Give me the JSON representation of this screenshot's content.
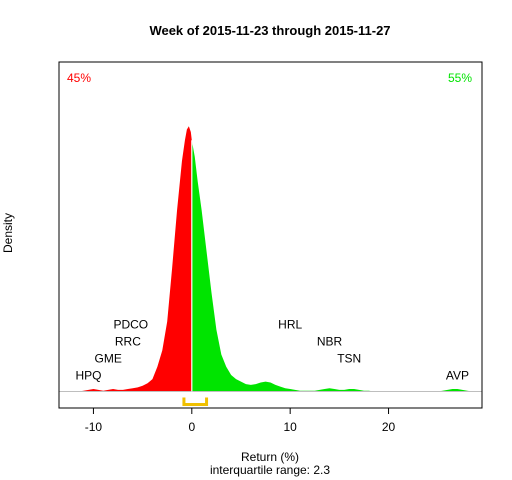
{
  "chart_data": {
    "type": "area",
    "title": "Week of 2015-11-23 through 2015-11-27",
    "xlabel": "Return (%)",
    "ylabel": "Density",
    "subtitle": "interquartile range: 2.3",
    "xlim": [
      -13.5,
      29.5
    ],
    "ylim": [
      -0.02,
      0.4
    ],
    "x_ticks": [
      -10,
      0,
      10,
      20
    ],
    "x_tick_labels": [
      "-10",
      "0",
      "10",
      "20"
    ],
    "grid": false,
    "split_at": 0,
    "negative_share": "45%",
    "positive_share": "55%",
    "colors": {
      "negative": "#ff0000",
      "positive": "#00e400",
      "iqr_bracket": "#f0c000",
      "baseline": "#bebebe",
      "text": "#000000"
    },
    "interquartile_range": {
      "q1": -0.8,
      "q3": 1.5
    },
    "density": {
      "x": [
        -11.5,
        -11,
        -10.5,
        -10,
        -9.5,
        -9,
        -8.5,
        -8,
        -7.5,
        -7,
        -6.5,
        -6,
        -5.5,
        -5,
        -4.5,
        -4,
        -3.5,
        -3,
        -2.5,
        -2,
        -1.5,
        -1,
        -0.7,
        -0.5,
        -0.3,
        -0.1,
        0,
        0.3,
        0.6,
        1,
        1.5,
        2,
        2.5,
        3,
        3.5,
        4,
        4.5,
        5,
        5.5,
        6,
        6.5,
        7,
        7.5,
        8,
        8.5,
        9,
        9.5,
        10,
        10.5,
        11,
        11.5,
        12,
        12.5,
        13,
        13.5,
        14,
        14.5,
        15,
        15.5,
        16,
        16.5,
        17,
        17.5,
        18,
        18.5,
        19,
        20,
        21,
        22,
        23,
        24,
        25,
        25.5,
        26,
        26.5,
        27,
        27.5,
        28,
        28.5
      ],
      "y": [
        0,
        0.001,
        0.002,
        0.003,
        0.002,
        0.001,
        0.002,
        0.003,
        0.002,
        0.002,
        0.003,
        0.004,
        0.005,
        0.007,
        0.01,
        0.015,
        0.03,
        0.05,
        0.085,
        0.15,
        0.22,
        0.28,
        0.305,
        0.318,
        0.322,
        0.315,
        0.305,
        0.285,
        0.255,
        0.22,
        0.17,
        0.12,
        0.075,
        0.045,
        0.03,
        0.02,
        0.015,
        0.012,
        0.009,
        0.008,
        0.009,
        0.011,
        0.012,
        0.011,
        0.008,
        0.006,
        0.004,
        0.003,
        0.002,
        0.001,
        0.001,
        0.001,
        0.001,
        0.002,
        0.003,
        0.004,
        0.003,
        0.002,
        0.002,
        0.003,
        0.003,
        0.002,
        0.001,
        0.001,
        0,
        0,
        0,
        0,
        0,
        0,
        0,
        0,
        0.001,
        0.002,
        0.003,
        0.003,
        0.002,
        0.001,
        0
      ]
    },
    "annotations": [
      {
        "label": "HPQ",
        "x": -10.5,
        "level": 1
      },
      {
        "label": "GME",
        "x": -8.5,
        "level": 2
      },
      {
        "label": "RRC",
        "x": -6.5,
        "level": 3
      },
      {
        "label": "PDCO",
        "x": -6.2,
        "level": 4
      },
      {
        "label": "HRL",
        "x": 10.0,
        "level": 4
      },
      {
        "label": "NBR",
        "x": 14.0,
        "level": 3
      },
      {
        "label": "TSN",
        "x": 16.0,
        "level": 2
      },
      {
        "label": "AVP",
        "x": 27.0,
        "level": 1
      }
    ]
  }
}
